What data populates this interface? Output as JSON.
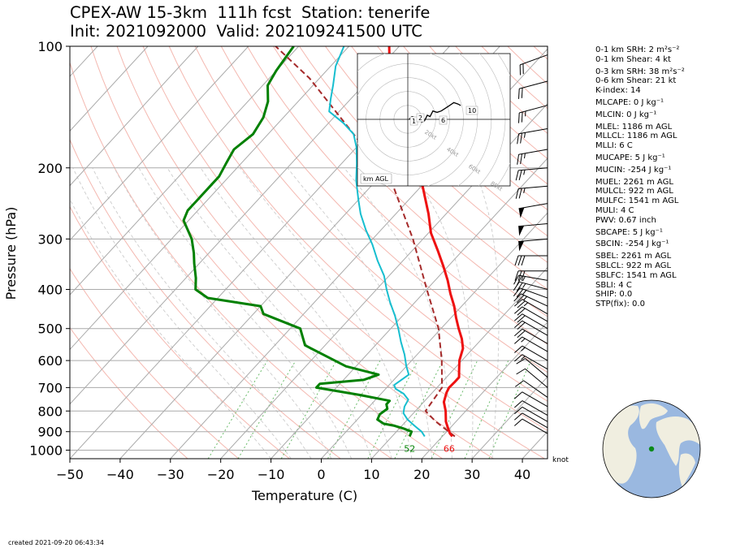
{
  "title": {
    "line1": "CPEX-AW 15-3km  111h fcst  Station: tenerife",
    "line2": "Init: 2021092000  Valid: 202109241500 UTC"
  },
  "indices": [
    {
      "text": "0-1 km SRH: 2 m²s⁻²",
      "gap": false
    },
    {
      "text": "0-1 km Shear: 4 kt",
      "gap": false
    },
    {
      "text": "0-3 km SRH: 38 m²s⁻²",
      "gap": true
    },
    {
      "text": "0-6 km Shear: 21 kt",
      "gap": false
    },
    {
      "text": "K-index: 14",
      "gap": false
    },
    {
      "text": "MLCAPE: 0 J kg⁻¹",
      "gap": true
    },
    {
      "text": "MLCIN: 0 J kg⁻¹",
      "gap": true
    },
    {
      "text": "MLEL: 1186 m AGL",
      "gap": true
    },
    {
      "text": "MLLCL: 1186 m AGL",
      "gap": false
    },
    {
      "text": "MLLI: 6 C",
      "gap": false
    },
    {
      "text": "MUCAPE: 5 J kg⁻¹",
      "gap": true
    },
    {
      "text": "MUCIN: -254 J kg⁻¹",
      "gap": true
    },
    {
      "text": "MUEL: 2261 m AGL",
      "gap": true
    },
    {
      "text": "MULCL: 922 m AGL",
      "gap": false
    },
    {
      "text": "MULFC: 1541 m AGL",
      "gap": false
    },
    {
      "text": "MULI: 4 C",
      "gap": false
    },
    {
      "text": "PWV: 0.67 inch",
      "gap": false
    },
    {
      "text": "SBCAPE: 5 J kg⁻¹",
      "gap": true
    },
    {
      "text": "SBCIN: -254 J kg⁻¹",
      "gap": true
    },
    {
      "text": "SBEL: 2261 m AGL",
      "gap": true
    },
    {
      "text": "SBLCL: 922 m AGL",
      "gap": false
    },
    {
      "text": "SBLFC: 1541 m AGL",
      "gap": false
    },
    {
      "text": "SBLI: 4 C",
      "gap": false
    },
    {
      "text": "SHIP: 0.0",
      "gap": false
    },
    {
      "text": "STP(fix): 0.0",
      "gap": false
    }
  ],
  "created": "created 2021-09-20 06:43:34",
  "colors": {
    "temperature": "#ee1111",
    "dewpoint": "#008000",
    "wetbulb": "#17becf",
    "parcel": "#a52a2a",
    "isobar": "#aaaaaa",
    "isotherm": "#aaaaaa",
    "dry_adiabat": "#f4b8b0",
    "moist_adiabat": "#cccccc",
    "mixing_ratio": "#2ca02c",
    "ocean": "#9ab8e0",
    "land": "#f0eee0",
    "station_marker": "#0a8a1a"
  },
  "chart_data": {
    "type": "line",
    "title": "CPEX-AW 15-3km  111h fcst  Station: tenerife",
    "xlabel": "Temperature (C)",
    "ylabel": "Pressure (hPa)",
    "xlim": [
      -50,
      45
    ],
    "ylim": [
      1050,
      100
    ],
    "yscale": "log",
    "skew": true,
    "xticks": [
      -50,
      -40,
      -30,
      -20,
      -10,
      0,
      10,
      20,
      30,
      40
    ],
    "xticklabels": [
      "−50",
      "−40",
      "−30",
      "−20",
      "−10",
      "0",
      "10",
      "20",
      "30",
      "40"
    ],
    "yticks": [
      100,
      200,
      300,
      400,
      500,
      600,
      700,
      800,
      900,
      1000
    ],
    "yticklabels": [
      "100",
      "200",
      "300",
      "400",
      "500",
      "600",
      "700",
      "800",
      "900",
      "1000"
    ],
    "wind_unit": "knot",
    "surface_temperature_label": "66",
    "surface_dewpoint_label": "52",
    "series": [
      {
        "kind": "temperature",
        "points": [
          [
            22,
            925
          ],
          [
            21,
            910
          ],
          [
            19.5,
            880
          ],
          [
            18,
            850
          ],
          [
            16,
            800
          ],
          [
            14,
            760
          ],
          [
            12.8,
            720
          ],
          [
            12.4,
            700
          ],
          [
            12.5,
            680
          ],
          [
            12.5,
            660
          ],
          [
            11.5,
            640
          ],
          [
            9.5,
            600
          ],
          [
            8,
            560
          ],
          [
            6,
            530
          ],
          [
            3.5,
            500
          ],
          [
            1,
            470
          ],
          [
            -1.5,
            440
          ],
          [
            -4.5,
            410
          ],
          [
            -7.5,
            380
          ],
          [
            -11,
            350
          ],
          [
            -15,
            320
          ],
          [
            -19.5,
            290
          ],
          [
            -23.5,
            260
          ],
          [
            -27.5,
            235
          ],
          [
            -31,
            215
          ],
          [
            -34,
            197
          ],
          [
            -37,
            180
          ],
          [
            -40,
            167
          ],
          [
            -44,
            155
          ],
          [
            -47,
            145
          ],
          [
            -51,
            134
          ],
          [
            -54,
            125
          ],
          [
            -58,
            113
          ],
          [
            -62,
            100
          ]
        ]
      },
      {
        "kind": "dewpoint",
        "points": [
          [
            13.5,
            925
          ],
          [
            13,
            900
          ],
          [
            11,
            885
          ],
          [
            8.5,
            870
          ],
          [
            6,
            860
          ],
          [
            4,
            840
          ],
          [
            3.5,
            815
          ],
          [
            4,
            790
          ],
          [
            3,
            770
          ],
          [
            3,
            755
          ],
          [
            -4,
            730
          ],
          [
            -14,
            700
          ],
          [
            -14,
            685
          ],
          [
            -6,
            670
          ],
          [
            -4,
            650
          ],
          [
            -12,
            620
          ],
          [
            -24,
            550
          ],
          [
            -28,
            500
          ],
          [
            -38,
            460
          ],
          [
            -40,
            440
          ],
          [
            -52,
            420
          ],
          [
            -56,
            400
          ],
          [
            -58,
            375
          ],
          [
            -61,
            345
          ],
          [
            -63,
            325
          ],
          [
            -66,
            300
          ],
          [
            -71,
            270
          ],
          [
            -72,
            255
          ],
          [
            -72,
            240
          ],
          [
            -72,
            225
          ],
          [
            -72,
            210
          ],
          [
            -73,
            195
          ],
          [
            -74,
            180
          ],
          [
            -73,
            165
          ],
          [
            -74,
            150
          ],
          [
            -76,
            137
          ],
          [
            -79,
            125
          ],
          [
            -80,
            115
          ],
          [
            -81,
            100
          ]
        ]
      },
      {
        "kind": "wetbulb",
        "points": [
          [
            16.5,
            925
          ],
          [
            15,
            900
          ],
          [
            12.5,
            870
          ],
          [
            10,
            840
          ],
          [
            8,
            810
          ],
          [
            7,
            780
          ],
          [
            6.5,
            750
          ],
          [
            4.5,
            725
          ],
          [
            2,
            705
          ],
          [
            1,
            690
          ],
          [
            1.5,
            670
          ],
          [
            2,
            650
          ],
          [
            0,
            620
          ],
          [
            -2.5,
            580
          ],
          [
            -5.5,
            540
          ],
          [
            -8.5,
            500
          ],
          [
            -11.5,
            465
          ],
          [
            -15,
            430
          ],
          [
            -18,
            400
          ],
          [
            -21,
            370
          ],
          [
            -25,
            340
          ],
          [
            -29,
            310
          ],
          [
            -33,
            285
          ],
          [
            -37,
            260
          ],
          [
            -40,
            240
          ],
          [
            -44,
            215
          ],
          [
            -47,
            195
          ],
          [
            -50,
            178
          ],
          [
            -53,
            165
          ],
          [
            -57,
            155
          ],
          [
            -62,
            145
          ],
          [
            -64,
            135
          ],
          [
            -66,
            125
          ],
          [
            -69,
            112
          ],
          [
            -71,
            100
          ]
        ]
      },
      {
        "kind": "parcel",
        "points": [
          [
            22.5,
            925
          ],
          [
            16,
            850
          ],
          [
            12,
            800
          ],
          [
            11,
            700
          ],
          [
            6,
            600
          ],
          [
            -0.5,
            500
          ],
          [
            -10,
            400
          ],
          [
            -22,
            300
          ],
          [
            -36,
            220
          ],
          [
            -53,
            165
          ],
          [
            -72,
            120
          ],
          [
            -86,
            98
          ]
        ]
      }
    ],
    "wind_barbs": [
      {
        "p": 105,
        "spd": 20,
        "dir": 250
      },
      {
        "p": 122,
        "spd": 20,
        "dir": 255
      },
      {
        "p": 140,
        "spd": 25,
        "dir": 255
      },
      {
        "p": 160,
        "spd": 25,
        "dir": 260
      },
      {
        "p": 180,
        "spd": 25,
        "dir": 260
      },
      {
        "p": 200,
        "spd": 25,
        "dir": 265
      },
      {
        "p": 222,
        "spd": 25,
        "dir": 265
      },
      {
        "p": 245,
        "spd": 50,
        "dir": 260
      },
      {
        "p": 275,
        "spd": 50,
        "dir": 265
      },
      {
        "p": 300,
        "spd": 50,
        "dir": 265
      },
      {
        "p": 330,
        "spd": 30,
        "dir": 270
      },
      {
        "p": 360,
        "spd": 30,
        "dir": 270
      },
      {
        "p": 380,
        "spd": 25,
        "dir": 280
      },
      {
        "p": 400,
        "spd": 25,
        "dir": 285
      },
      {
        "p": 420,
        "spd": 25,
        "dir": 290
      },
      {
        "p": 440,
        "spd": 25,
        "dir": 295
      },
      {
        "p": 460,
        "spd": 25,
        "dir": 300
      },
      {
        "p": 480,
        "spd": 20,
        "dir": 300
      },
      {
        "p": 500,
        "spd": 20,
        "dir": 300
      },
      {
        "p": 520,
        "spd": 20,
        "dir": 300
      },
      {
        "p": 545,
        "spd": 20,
        "dir": 300
      },
      {
        "p": 570,
        "spd": 15,
        "dir": 300
      },
      {
        "p": 600,
        "spd": 15,
        "dir": 300
      },
      {
        "p": 630,
        "spd": 15,
        "dir": 300
      },
      {
        "p": 660,
        "spd": 10,
        "dir": 310
      },
      {
        "p": 700,
        "spd": 10,
        "dir": 310
      },
      {
        "p": 740,
        "spd": 10,
        "dir": 305
      },
      {
        "p": 780,
        "spd": 10,
        "dir": 300
      },
      {
        "p": 820,
        "spd": 10,
        "dir": 300
      },
      {
        "p": 850,
        "spd": 10,
        "dir": 300
      },
      {
        "p": 880,
        "spd": 10,
        "dir": 300
      },
      {
        "p": 910,
        "spd": 10,
        "dir": 300
      }
    ],
    "hodograph": {
      "ring_labels": [
        "20kt",
        "40kt",
        "60kt",
        "80kt"
      ],
      "height_labels": [
        "1",
        "2",
        "6",
        "10"
      ],
      "legend": "km AGL",
      "points": [
        [
          -1,
          0
        ],
        [
          -2,
          1
        ],
        [
          -3,
          2
        ],
        [
          -6,
          1
        ],
        [
          -7,
          0
        ],
        [
          -9,
          1
        ],
        [
          -10,
          -2
        ],
        [
          -12,
          -1
        ],
        [
          -14,
          3
        ],
        [
          -16,
          2
        ],
        [
          -18,
          6
        ],
        [
          -21,
          5
        ],
        [
          -24,
          6
        ],
        [
          -27,
          8
        ],
        [
          -30,
          10
        ],
        [
          -33,
          12
        ],
        [
          -36,
          11
        ],
        [
          -38,
          10
        ]
      ],
      "range": 70
    }
  }
}
